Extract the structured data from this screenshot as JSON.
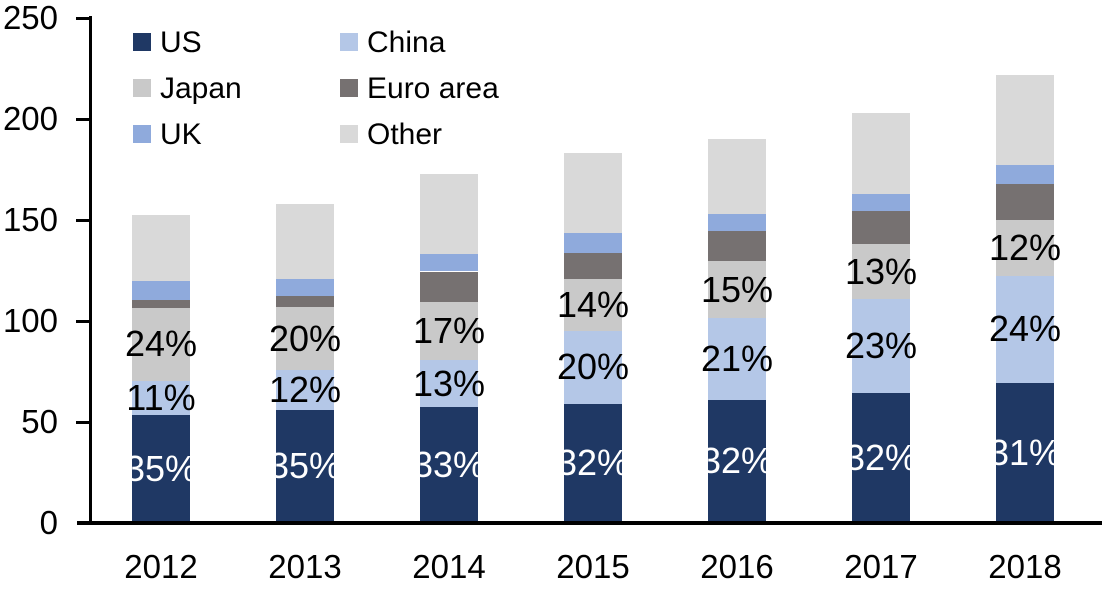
{
  "chart_data": {
    "type": "bar",
    "stacked": true,
    "title": "",
    "xlabel": "",
    "ylabel": "",
    "categories": [
      "2012",
      "2013",
      "2014",
      "2015",
      "2016",
      "2017",
      "2018"
    ],
    "series": [
      {
        "name": "US",
        "color": "#1F3864",
        "label_color": "#FFFFFF",
        "values": [
          53.5,
          56,
          57.5,
          59,
          61,
          64.5,
          69.5
        ],
        "percent_labels": [
          "35%",
          "35%",
          "33%",
          "32%",
          "32%",
          "32%",
          "31%"
        ]
      },
      {
        "name": "China",
        "color": "#B4C7E7",
        "label_color": "#000000",
        "values": [
          17,
          19.5,
          23,
          36,
          40.5,
          46.5,
          53
        ],
        "percent_labels": [
          "11%",
          "12%",
          "13%",
          "20%",
          "21%",
          "23%",
          "24%"
        ]
      },
      {
        "name": "Japan",
        "color": "#C9C9C9",
        "label_color": "#000000",
        "values": [
          36,
          31.5,
          29,
          26,
          28,
          27,
          27.5
        ],
        "percent_labels": [
          "24%",
          "20%",
          "17%",
          "14%",
          "15%",
          "13%",
          "12%"
        ]
      },
      {
        "name": "Euro area",
        "color": "#767171",
        "values": [
          4,
          5.5,
          15,
          12.5,
          15,
          16.5,
          18
        ]
      },
      {
        "name": "UK",
        "color": "#8FAADC",
        "values": [
          9.5,
          8.5,
          8.5,
          10,
          8.5,
          8.5,
          9
        ]
      },
      {
        "name": "Other",
        "color": "#D9D9D9",
        "values": [
          32.5,
          37,
          40,
          39.5,
          37,
          40,
          45
        ]
      }
    ],
    "stack_order_bottom_to_top": [
      "US",
      "China",
      "Japan",
      "Euro area",
      "UK",
      "Other"
    ],
    "approx_totals": [
      152.5,
      158,
      173,
      183,
      190,
      203,
      222
    ],
    "ylim": [
      0,
      250
    ],
    "yticks": [
      0,
      50,
      100,
      150,
      200,
      250
    ],
    "grid": false,
    "legend": {
      "position": "top-left",
      "columns": 2,
      "order": [
        "US",
        "China",
        "Japan",
        "Euro area",
        "UK",
        "Other"
      ]
    }
  },
  "colors": {
    "axis": "#000000",
    "background": "#FFFFFF"
  }
}
